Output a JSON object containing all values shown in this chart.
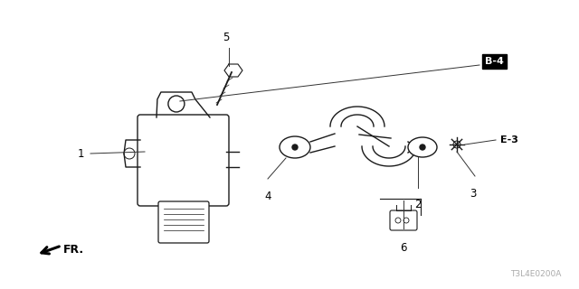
{
  "bg_color": "#ffffff",
  "line_color": "#1a1a1a",
  "label_color": "#000000",
  "title_code": "T3L4E0200A",
  "fr_label": "FR."
}
